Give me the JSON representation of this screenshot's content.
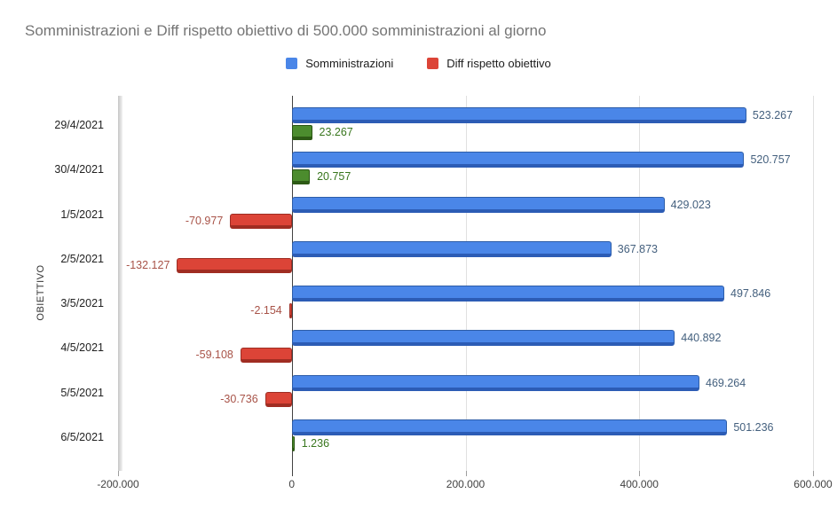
{
  "title": "Somministrazioni e Diff rispetto obiettivo di 500.000 somministrazioni al giorno",
  "legend": {
    "items": [
      {
        "label": "Somministrazioni",
        "color": "#4a86e8"
      },
      {
        "label": "Diff rispetto obiettivo",
        "color": "#dc4437"
      }
    ]
  },
  "axes": {
    "y_title": "OBIETTIVO",
    "x_min": -200000,
    "x_max": 600000,
    "x_ticks": [
      {
        "label": "-200.000",
        "value": -200000
      },
      {
        "label": "0",
        "value": 0
      },
      {
        "label": "200.000",
        "value": 200000
      },
      {
        "label": "400.000",
        "value": 400000
      },
      {
        "label": "600.000",
        "value": 600000
      }
    ]
  },
  "chart_data": {
    "type": "bar",
    "orientation": "horizontal",
    "title": "Somministrazioni e Diff rispetto obiettivo di 500.000 somministrazioni al giorno",
    "xlabel": "",
    "ylabel": "OBIETTIVO",
    "xlim": [
      -200000,
      600000
    ],
    "grid": true,
    "legend_position": "top",
    "categories": [
      "29/4/2021",
      "30/4/2021",
      "1/5/2021",
      "2/5/2021",
      "3/5/2021",
      "4/5/2021",
      "5/5/2021",
      "6/5/2021"
    ],
    "series": [
      {
        "name": "Somministrazioni",
        "color": "#4a86e8",
        "values": [
          523267,
          520757,
          429023,
          367873,
          497846,
          440892,
          469264,
          501236
        ],
        "labels": [
          "523.267",
          "520.757",
          "429.023",
          "367.873",
          "497.846",
          "440.892",
          "469.264",
          "501.236"
        ]
      },
      {
        "name": "Diff rispetto obiettivo",
        "color": "#dc4437",
        "positive_color": "#4c8c2e",
        "values": [
          23267,
          20757,
          -70977,
          -132127,
          -2154,
          -59108,
          -30736,
          1236
        ],
        "labels": [
          "23.267",
          "20.757",
          "-70.977",
          "-132.127",
          "-2.154",
          "-59.108",
          "-30.736",
          "1.236"
        ]
      }
    ]
  },
  "colors": {
    "title_text": "#757575",
    "bar_blue": "#4a86e8",
    "bar_red": "#dc4437",
    "bar_green": "#4c8c2e",
    "label_blue": "#44607e",
    "label_red": "#a85348",
    "label_green": "#38761d",
    "gridline": "#e0e0e0",
    "zero_line": "#424242",
    "axis_text": "#424242",
    "category_text": "#222222"
  }
}
